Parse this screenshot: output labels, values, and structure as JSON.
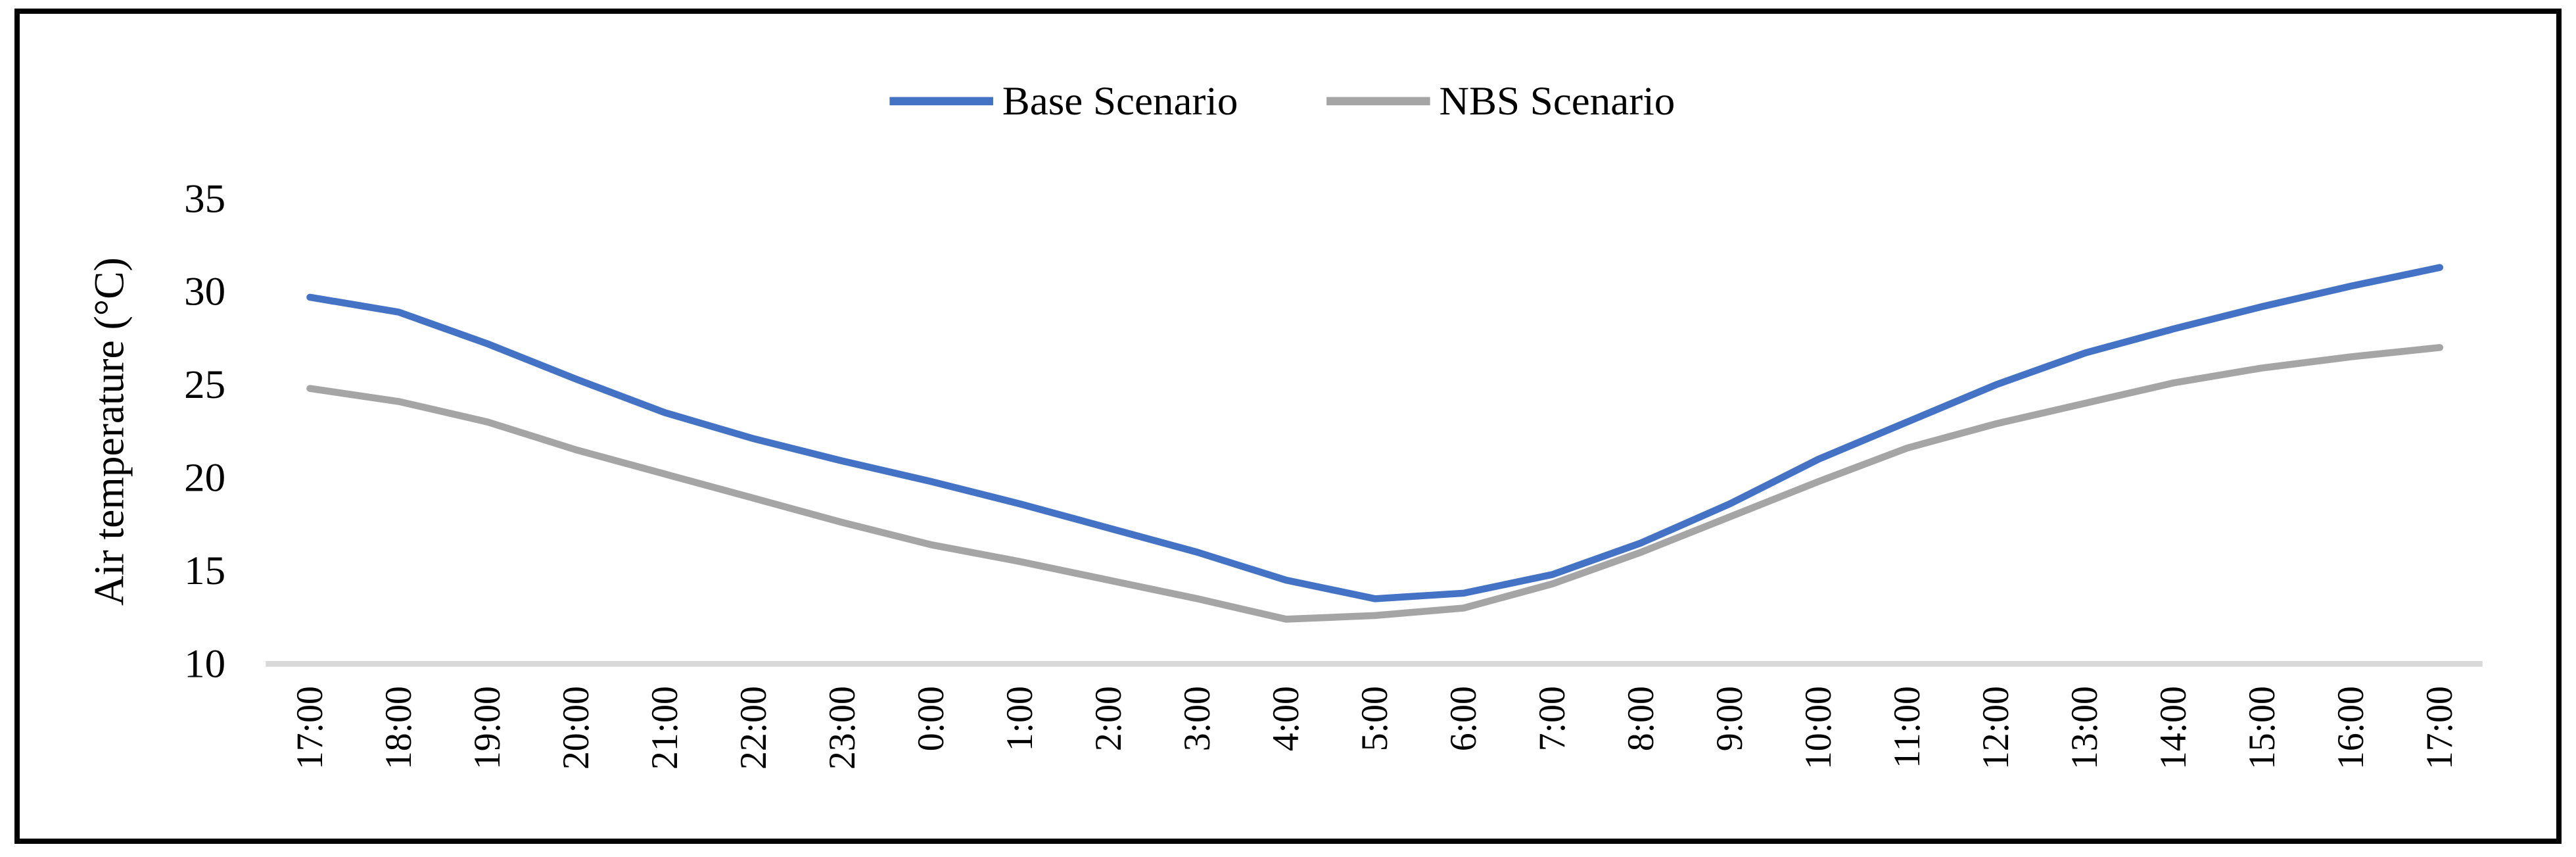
{
  "figure": {
    "background_color": "#ffffff",
    "border_color": "#000000"
  },
  "chart_data": {
    "type": "line",
    "title": "",
    "xlabel": "",
    "ylabel": "Air temperature (°C)",
    "ylim": [
      10,
      37
    ],
    "y_ticks": [
      10,
      15,
      20,
      25,
      30,
      35
    ],
    "grid": "off (single light axis baseline at y=10)",
    "axis_line_color": "#D9D9D9",
    "text_color": "#000000",
    "legend_position": "top-center",
    "categories": [
      "17:00",
      "18:00",
      "19:00",
      "20:00",
      "21:00",
      "22:00",
      "23:00",
      "0:00",
      "1:00",
      "2:00",
      "3:00",
      "4:00",
      "5:00",
      "6:00",
      "7:00",
      "8:00",
      "9:00",
      "10:00",
      "11:00",
      "12:00",
      "13:00",
      "14:00",
      "15:00",
      "16:00",
      "17:00"
    ],
    "series": [
      {
        "name": "Base Scenario",
        "color": "#4472C4",
        "values": [
          29.7,
          28.9,
          27.2,
          25.3,
          23.5,
          22.1,
          20.9,
          19.8,
          18.6,
          17.3,
          16.0,
          14.5,
          13.5,
          13.8,
          14.8,
          16.5,
          18.6,
          21.0,
          23.0,
          25.0,
          26.7,
          28.0,
          29.2,
          30.3,
          31.3
        ]
      },
      {
        "name": "NBS Scenario",
        "color": "#A5A5A5",
        "values": [
          24.8,
          24.1,
          23.0,
          21.5,
          20.2,
          18.9,
          17.6,
          16.4,
          15.5,
          14.5,
          13.5,
          12.4,
          12.6,
          13.0,
          14.3,
          16.0,
          17.9,
          19.8,
          21.6,
          22.9,
          24.0,
          25.1,
          25.9,
          26.5,
          27.0
        ]
      }
    ]
  }
}
